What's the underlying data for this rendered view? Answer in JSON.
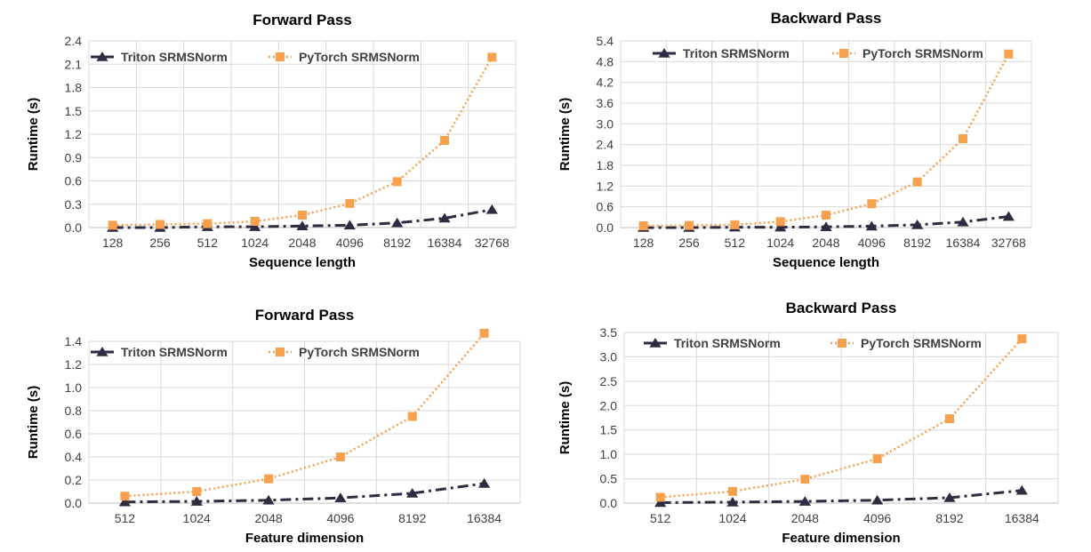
{
  "colors": {
    "triton": "#2f2c42",
    "pytorch": "#f7a04e",
    "grid": "#d9d9d9",
    "axis": "#bfbfbf"
  },
  "chart_data": [
    {
      "type": "line",
      "title": "Forward Pass",
      "xlabel": "Sequence length",
      "ylabel": "Runtime (s)",
      "categories": [
        "128",
        "256",
        "512",
        "1024",
        "2048",
        "4096",
        "8192",
        "16384",
        "32768"
      ],
      "ylim": [
        0,
        2.4
      ],
      "yticks": [
        "0.0",
        "0.3",
        "0.6",
        "0.9",
        "1.2",
        "1.5",
        "1.8",
        "2.1",
        "2.4"
      ],
      "grid": true,
      "legend": "top-left",
      "series": [
        {
          "name": "Triton SRMSNorm",
          "marker": "triangle",
          "values": [
            0.0,
            0.0,
            0.01,
            0.01,
            0.02,
            0.03,
            0.06,
            0.12,
            0.23
          ]
        },
        {
          "name": "PyTorch SRMSNorm",
          "marker": "square",
          "values": [
            0.03,
            0.04,
            0.05,
            0.08,
            0.16,
            0.31,
            0.59,
            1.12,
            2.19
          ]
        }
      ]
    },
    {
      "type": "line",
      "title": "Backward Pass",
      "xlabel": "Sequence length",
      "ylabel": "Runtime (s)",
      "categories": [
        "128",
        "256",
        "512",
        "1024",
        "2048",
        "4096",
        "8192",
        "16384",
        "32768"
      ],
      "ylim": [
        0,
        5.4
      ],
      "yticks": [
        "0.0",
        "0.6",
        "1.2",
        "1.8",
        "2.4",
        "3.0",
        "3.6",
        "4.2",
        "4.8",
        "5.4"
      ],
      "grid": true,
      "legend": "top-left",
      "series": [
        {
          "name": "Triton SRMSNorm",
          "marker": "triangle",
          "values": [
            0.0,
            0.0,
            0.01,
            0.01,
            0.02,
            0.04,
            0.08,
            0.16,
            0.32
          ]
        },
        {
          "name": "PyTorch SRMSNorm",
          "marker": "square",
          "values": [
            0.05,
            0.06,
            0.08,
            0.17,
            0.36,
            0.69,
            1.32,
            2.57,
            5.02
          ]
        }
      ]
    },
    {
      "type": "line",
      "title": "Forward Pass",
      "xlabel": "Feature dimension",
      "ylabel": "Runtime (s)",
      "categories": [
        "512",
        "1024",
        "2048",
        "4096",
        "8192",
        "16384"
      ],
      "ylim": [
        0,
        1.4
      ],
      "yticks": [
        "0.0",
        "0.2",
        "0.4",
        "0.6",
        "0.8",
        "1.0",
        "1.2",
        "1.4"
      ],
      "grid": true,
      "legend": "top-left",
      "series": [
        {
          "name": "Triton SRMSNorm",
          "marker": "triangle",
          "values": [
            0.01,
            0.015,
            0.025,
            0.045,
            0.085,
            0.17
          ]
        },
        {
          "name": "PyTorch SRMSNorm",
          "marker": "square",
          "values": [
            0.06,
            0.1,
            0.21,
            0.4,
            0.75,
            1.47
          ]
        }
      ]
    },
    {
      "type": "line",
      "title": "Backward Pass",
      "xlabel": "Feature dimension",
      "ylabel": "Runtime (s)",
      "categories": [
        "512",
        "1024",
        "2048",
        "4096",
        "8192",
        "16384"
      ],
      "ylim": [
        0,
        3.5
      ],
      "yticks": [
        "0.0",
        "0.5",
        "1.0",
        "1.5",
        "2.0",
        "2.5",
        "3.0",
        "3.5"
      ],
      "grid": true,
      "legend": "top-left",
      "series": [
        {
          "name": "Triton SRMSNorm",
          "marker": "triangle",
          "values": [
            0.01,
            0.02,
            0.035,
            0.06,
            0.11,
            0.26
          ]
        },
        {
          "name": "PyTorch SRMSNorm",
          "marker": "square",
          "values": [
            0.12,
            0.24,
            0.49,
            0.91,
            1.73,
            3.37
          ]
        }
      ]
    }
  ]
}
